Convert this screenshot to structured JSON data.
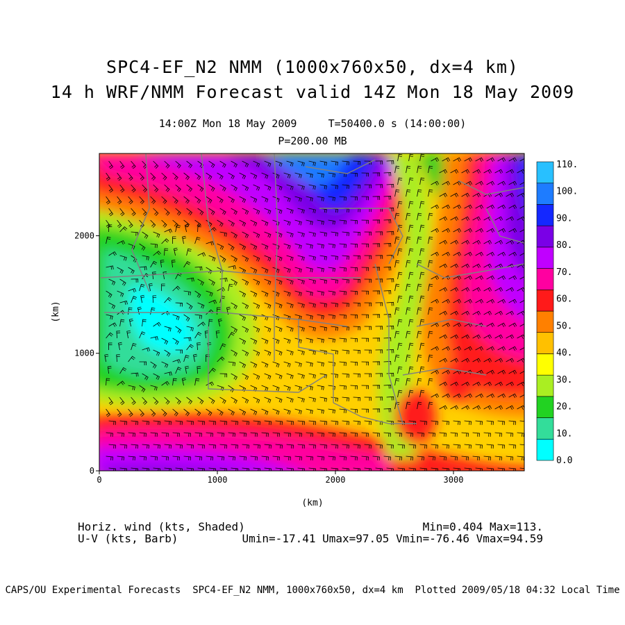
{
  "title": {
    "line1": "SPC4-EF_N2 NMM (1000x760x50, dx=4 km)",
    "line2": "14 h WRF/NMM Forecast valid 14Z Mon 18 May 2009"
  },
  "subtitle": {
    "time": "14:00Z Mon 18 May 2009     T=50400.0 s (14:00:00)",
    "level": "P=200.00 MB"
  },
  "axes": {
    "x_label": "(km)",
    "y_label": "(km)",
    "x_ticks": [
      "0",
      "1000",
      "2000",
      "3000"
    ],
    "y_ticks": [
      "0",
      "1000",
      "2000"
    ],
    "x_range_km": [
      0,
      3600
    ],
    "y_range_km": [
      0,
      2700
    ]
  },
  "colorbar": {
    "labels": [
      "0.0",
      "10.",
      "20.",
      "30.",
      "40.",
      "50.",
      "60.",
      "70.",
      "80.",
      "90.",
      "100.",
      "110."
    ],
    "colors": [
      "#00ffff",
      "#33dd9a",
      "#22d222",
      "#aaee22",
      "#ffff00",
      "#ffc000",
      "#ff8000",
      "#ff1a1a",
      "#ff00a0",
      "#c000ff",
      "#7a00e6",
      "#1428ff",
      "#1e7cff",
      "#28c0ff"
    ]
  },
  "stats": {
    "left1": "Horiz. wind (kts, Shaded)",
    "right1": "Min=0.404 Max=113.",
    "left2": "U-V (kts, Barb)",
    "right2": "Umin=-17.41 Umax=97.05 Vmin=-76.46 Vmax=94.59"
  },
  "footer": "CAPS/OU Experimental Forecasts  SPC4-EF_N2 NMM, 1000x760x50, dx=4 km  Plotted 2009/05/18 04:32 Local Time",
  "map_field": {
    "quantity": "horizontal wind speed",
    "units": "kts",
    "min": 0.404,
    "max": 113
  }
}
